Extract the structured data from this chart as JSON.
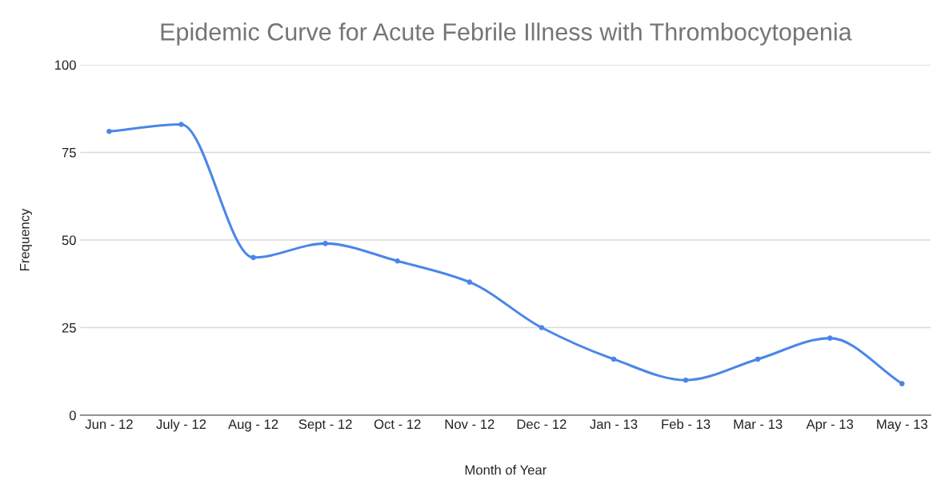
{
  "chart_data": {
    "type": "line",
    "title": "Epidemic Curve for Acute Febrile Illness with Thrombocytopenia",
    "xlabel": "Month of Year",
    "ylabel": "Frequency",
    "categories": [
      "Jun - 12",
      "July - 12",
      "Aug - 12",
      "Sept - 12",
      "Oct - 12",
      "Nov - 12",
      "Dec - 12",
      "Jan - 13",
      "Feb - 13",
      "Mar - 13",
      "Apr - 13",
      "May - 13"
    ],
    "series": [
      {
        "color": "#4a86e8",
        "values": [
          81,
          83,
          45,
          49,
          44,
          38,
          25,
          16,
          10,
          16,
          22,
          9
        ]
      }
    ],
    "ylim": [
      0,
      100
    ],
    "yticks": [
      0,
      25,
      50,
      75,
      100
    ],
    "grid": "y",
    "marker": "circle",
    "line_style": "solid",
    "legend": false
  }
}
